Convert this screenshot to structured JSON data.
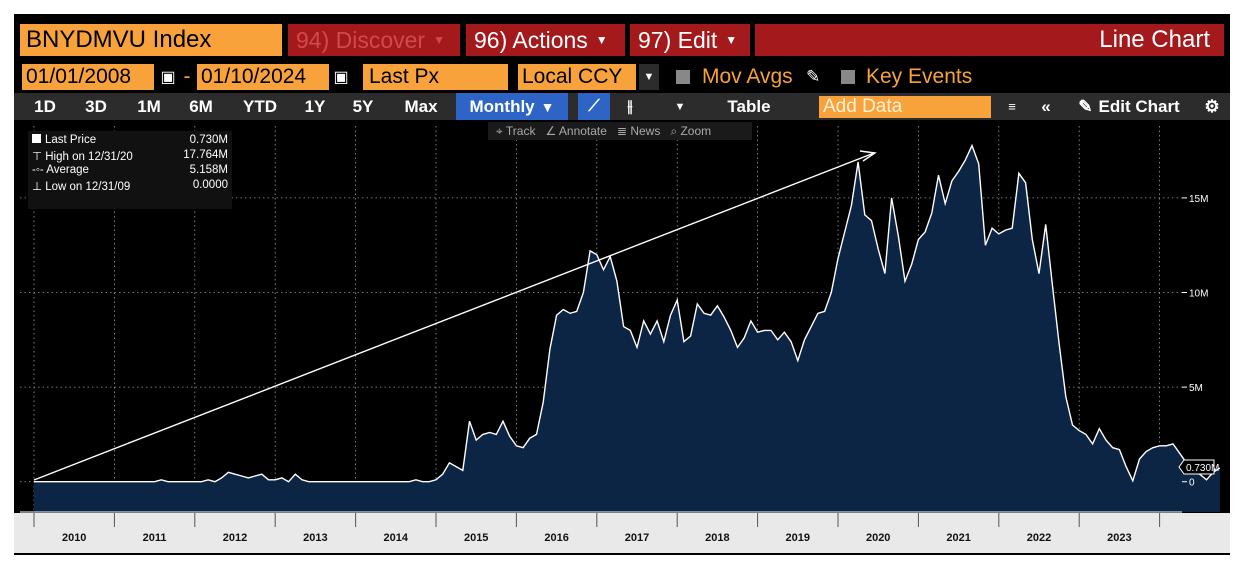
{
  "toolbar": {
    "security": "BNYDMVU Index",
    "discover": "94) Discover",
    "actions": "96) Actions",
    "edit": "97) Edit",
    "chart_type": "Line Chart",
    "date_start": "01/01/2008",
    "date_sep": "-",
    "date_end": "01/10/2024",
    "field": "Last Px",
    "currency": "Local CCY",
    "mov_avgs": "Mov Avgs",
    "key_events": "Key Events",
    "periods": [
      "1D",
      "3D",
      "1M",
      "6M",
      "YTD",
      "1Y",
      "5Y",
      "Max"
    ],
    "frequency": "Monthly",
    "table": "Table",
    "add_data_placeholder": "Add Data",
    "edit_chart": "Edit Chart",
    "tools": [
      "Track",
      "Annotate",
      "News",
      "Zoom"
    ]
  },
  "legend": [
    {
      "label": "Last Price",
      "value": "0.730M"
    },
    {
      "label": "High on 12/31/20",
      "value": "17.764M"
    },
    {
      "label": "Average",
      "value": "5.158M"
    },
    {
      "label": "Low on 12/31/09",
      "value": "0.0000"
    }
  ],
  "colors": {
    "fill": "#0d2544",
    "line": "#ffffff",
    "accent": "#f7a23b",
    "header_red": "#a3191c",
    "active_blue": "#2e64c6"
  },
  "chart_data": {
    "type": "area",
    "title": "",
    "xlabel": "",
    "ylabel": "",
    "x_ticks": [
      "2010",
      "2011",
      "2012",
      "2013",
      "2014",
      "2015",
      "2016",
      "2017",
      "2018",
      "2019",
      "2020",
      "2021",
      "2022",
      "2023"
    ],
    "y_ticks": [
      "15M",
      "10M",
      "5M",
      "0"
    ],
    "y_tick_values": [
      15,
      10,
      5,
      0
    ],
    "ylim": [
      -1.6,
      18.8
    ],
    "last_value_label": "0.730M",
    "x_start": "2010-01",
    "values_millions": [
      0.0,
      0.0,
      0.0,
      0.0,
      0.0,
      0.0,
      0.0,
      0.0,
      0.0,
      0.0,
      0.0,
      0.0,
      0.0,
      0.0,
      0.0,
      0.0,
      0.0,
      0.0,
      0.0,
      0.1,
      0.0,
      0.0,
      0.0,
      0.0,
      0.0,
      0.0,
      0.1,
      0.0,
      0.2,
      0.5,
      0.4,
      0.3,
      0.2,
      0.3,
      0.4,
      0.1,
      0.1,
      0.2,
      0.0,
      0.4,
      0.1,
      0.0,
      0.0,
      0.0,
      0.0,
      0.0,
      0.0,
      0.0,
      0.0,
      0.0,
      0.0,
      0.0,
      0.0,
      0.0,
      0.0,
      0.0,
      0.0,
      0.1,
      0.0,
      0.0,
      0.1,
      0.4,
      1.0,
      0.8,
      0.6,
      3.2,
      2.2,
      2.5,
      2.6,
      2.5,
      3.2,
      2.4,
      1.9,
      1.8,
      2.3,
      2.5,
      4.2,
      7.0,
      8.8,
      9.1,
      8.9,
      9.0,
      10.0,
      12.2,
      12.0,
      11.2,
      11.9,
      10.6,
      8.2,
      8.0,
      7.1,
      8.5,
      7.8,
      8.5,
      7.4,
      8.8,
      9.6,
      7.4,
      7.7,
      9.4,
      8.9,
      8.8,
      9.3,
      8.7,
      8.0,
      7.1,
      7.6,
      8.5,
      7.9,
      8.0,
      8.0,
      7.5,
      7.9,
      7.4,
      6.4,
      7.5,
      8.2,
      8.9,
      9.0,
      10.0,
      11.8,
      13.2,
      14.6,
      16.9,
      14.1,
      13.8,
      12.3,
      11.0,
      15.0,
      13.0,
      10.6,
      11.5,
      12.8,
      13.2,
      14.2,
      16.2,
      14.7,
      15.9,
      16.4,
      17.0,
      17.764,
      16.8,
      12.5,
      13.4,
      13.1,
      13.3,
      13.4,
      16.3,
      15.8,
      12.8,
      11.0,
      13.6,
      10.4,
      7.3,
      4.5,
      3.0,
      2.7,
      2.5,
      2.0,
      2.8,
      2.2,
      1.8,
      1.7,
      0.8,
      0.05,
      1.2,
      1.6,
      1.8,
      1.9,
      1.9,
      2.0,
      1.5,
      1.0,
      0.5,
      0.4,
      0.1,
      0.5,
      0.73
    ]
  }
}
